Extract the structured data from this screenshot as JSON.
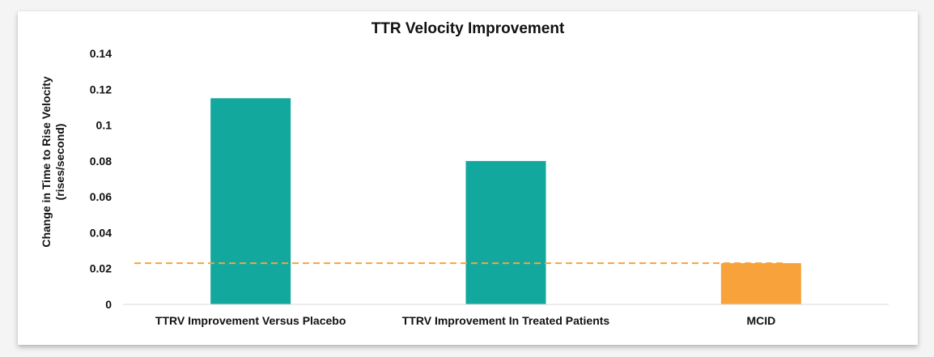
{
  "chart_data": {
    "type": "bar",
    "title": "TTR Velocity Improvement",
    "ylabel_lines": [
      "Change in Time to Rise Velocity",
      "(rises/second)"
    ],
    "xlabel": "",
    "categories": [
      "TTRV Improvement Versus Placebo",
      "TTRV Improvement In Treated Patients",
      "MCID"
    ],
    "values": [
      0.115,
      0.08,
      0.023
    ],
    "bar_colors": [
      "#13a89e",
      "#13a89e",
      "#f7a23b"
    ],
    "ylim": [
      0,
      0.14
    ],
    "yticks": [
      0,
      0.02,
      0.04,
      0.06,
      0.08,
      0.1,
      0.12,
      0.14
    ],
    "ytick_labels": [
      "0",
      "0.02",
      "0.04",
      "0.06",
      "0.08",
      "0.1",
      "0.12",
      "0.14"
    ],
    "reference_line": {
      "value": 0.023,
      "style": "dashed",
      "color": "#f7a23b"
    },
    "grid": false,
    "legend": "none"
  }
}
